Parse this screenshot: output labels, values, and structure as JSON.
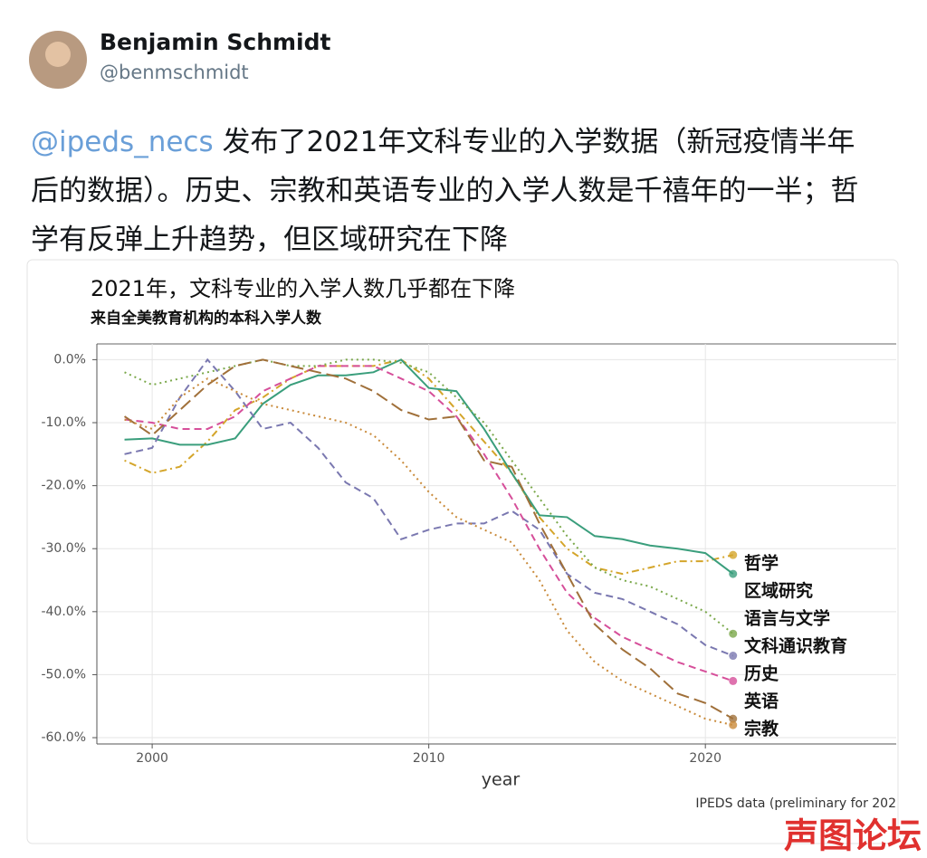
{
  "author": {
    "name": "Benjamin Schmidt",
    "handle": "@benmschmidt"
  },
  "tweet": {
    "mention": "@ipeds_necs",
    "text": "发布了2021年文科专业的入学数据（新冠疫情半年后的数据）。历史、宗教和英语专业的入学人数是千禧年的一半；哲学有反弹上升趋势，但区域研究在下降"
  },
  "chart_data": {
    "type": "line",
    "title": "2021年，文科专业的入学人数几乎都在下降",
    "subtitle": "来自全美教育机构的本科入学人数",
    "x_label": "year",
    "caption": "IPEDS data (preliminary for 202",
    "x": [
      1999,
      2000,
      2001,
      2002,
      2003,
      2004,
      2005,
      2006,
      2007,
      2008,
      2009,
      2010,
      2011,
      2012,
      2013,
      2014,
      2015,
      2016,
      2017,
      2018,
      2019,
      2020,
      2021
    ],
    "xlim": [
      1998,
      2026.9
    ],
    "xticks": [
      2000,
      2010,
      2020
    ],
    "ylim": [
      -61,
      2.5
    ],
    "yticks": [
      {
        "value": -60,
        "label": "-60.0%"
      },
      {
        "value": -50,
        "label": "-50.0%"
      },
      {
        "value": -40,
        "label": "-40.0%"
      },
      {
        "value": -30,
        "label": "-30.0%"
      },
      {
        "value": -20,
        "label": "-20.0%"
      },
      {
        "value": -10,
        "label": "-10.0%"
      },
      {
        "value": 0,
        "label": "0.0%"
      }
    ],
    "grid": true,
    "series": [
      {
        "name": "哲学",
        "color": "#d4a52a",
        "dash": "dotdash",
        "values": [
          -16,
          -18,
          -17,
          -13,
          -8,
          -6,
          -3,
          -1,
          -1,
          -1,
          0,
          -3,
          -8,
          -13,
          -18,
          -25,
          -30,
          -33,
          -34,
          -33,
          -32,
          -32,
          -31
        ]
      },
      {
        "name": "区域研究",
        "color": "#3a9e7c",
        "dash": "solid",
        "values": [
          -12.7,
          -12.5,
          -13.5,
          -13.5,
          -12.5,
          -7,
          -4,
          -2.5,
          -2.5,
          -2,
          0,
          -4.5,
          -5,
          -11,
          -18,
          -24.7,
          -25,
          -28,
          -28.5,
          -29.5,
          -30,
          -30.7,
          -34
        ]
      },
      {
        "name": "语言与文学",
        "color": "#7aa84a",
        "dash": "dotted",
        "values": [
          -2,
          -4,
          -3,
          -2,
          -1,
          0,
          -1,
          -1,
          0,
          0,
          -0.5,
          -2,
          -6,
          -10,
          -16,
          -22,
          -28,
          -33,
          -35,
          -36,
          -38,
          -40,
          -43.5
        ]
      },
      {
        "name": "文科通识教育",
        "color": "#7a78b0",
        "dash": "dashed",
        "values": [
          -15,
          -14,
          -6,
          0,
          -5,
          -11,
          -10,
          -14,
          -19.5,
          -22,
          -28.5,
          -27,
          -26,
          -26,
          -24,
          -27,
          -34,
          -37,
          -38,
          -40,
          -42,
          -45.3,
          -47
        ]
      },
      {
        "name": "历史",
        "color": "#d64f9a",
        "dash": "dashed",
        "values": [
          -9.5,
          -10,
          -11,
          -11,
          -9,
          -5,
          -3,
          -1,
          -1,
          -1,
          -3,
          -5,
          -9,
          -15,
          -22,
          -30,
          -37,
          -41,
          -44,
          -46,
          -48,
          -49.5,
          -51
        ]
      },
      {
        "name": "英语",
        "color": "#a0703a",
        "dash": "longdash",
        "values": [
          -9,
          -12,
          -8,
          -4,
          -1,
          0,
          -1,
          -2,
          -3,
          -5,
          -8,
          -9.5,
          -9,
          -16,
          -17,
          -26,
          -34,
          -42,
          -46,
          -49,
          -53,
          -54.5,
          -57
        ]
      },
      {
        "name": "宗教",
        "color": "#c98a3a",
        "dash": "dotted",
        "values": [
          -9.5,
          -11,
          -6,
          -3,
          -5,
          -7,
          -8,
          -9,
          -10,
          -12,
          -16,
          -21,
          -25,
          -27,
          -29,
          -35,
          -43,
          -48,
          -51,
          -53,
          -55,
          -57,
          -58
        ]
      }
    ]
  },
  "watermark": "声图论坛"
}
